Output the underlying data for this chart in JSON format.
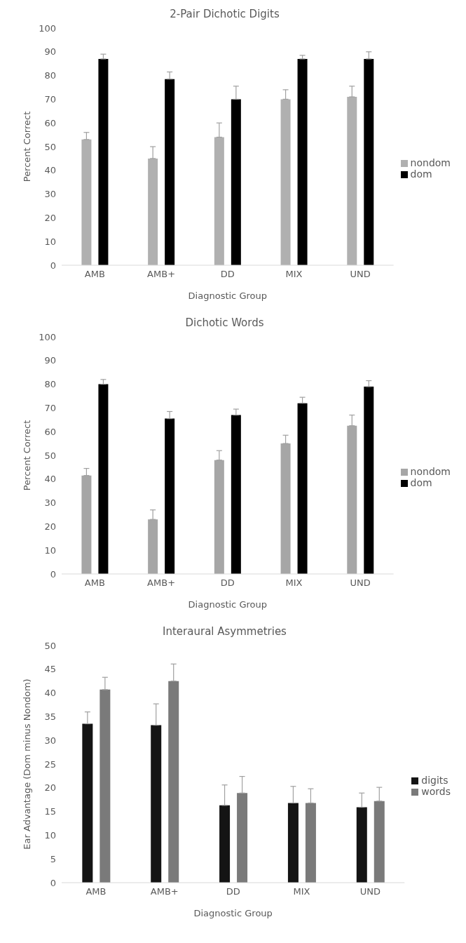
{
  "chart_data": [
    {
      "type": "bar",
      "title": "2-Pair Dichotic Digits",
      "xlabel": "Diagnostic Group",
      "ylabel": "Percent Correct",
      "categories": [
        "AMB",
        "AMB+",
        "DD",
        "MIX",
        "UND"
      ],
      "ylim": [
        0,
        100
      ],
      "yticks": [
        0,
        10,
        20,
        30,
        40,
        50,
        60,
        70,
        80,
        90,
        100
      ],
      "grid": false,
      "legend": "right",
      "series": [
        {
          "name": "nondom",
          "color": "#b0b0b0",
          "values": [
            53,
            45,
            54,
            70,
            71
          ],
          "errors": [
            [
              53,
              56
            ],
            [
              45,
              50
            ],
            [
              54,
              60
            ],
            [
              70,
              74
            ],
            [
              71,
              75.5
            ]
          ]
        },
        {
          "name": "dom",
          "color": "#000000",
          "values": [
            87,
            78.5,
            70,
            87,
            87
          ],
          "errors": [
            [
              87,
              89
            ],
            [
              78.5,
              81.5
            ],
            [
              70,
              75.5
            ],
            [
              87,
              88.5
            ],
            [
              87,
              90
            ]
          ]
        }
      ]
    },
    {
      "type": "bar",
      "title": "Dichotic Words",
      "xlabel": "Diagnostic Group",
      "ylabel": "Percent Correct",
      "categories": [
        "AMB",
        "AMB+",
        "DD",
        "MIX",
        "UND"
      ],
      "ylim": [
        0,
        100
      ],
      "yticks": [
        0,
        10,
        20,
        30,
        40,
        50,
        60,
        70,
        80,
        90,
        100
      ],
      "grid": false,
      "legend": "right",
      "series": [
        {
          "name": "nondom",
          "color": "#a6a6a6",
          "values": [
            41.5,
            23,
            48,
            55,
            62.5
          ],
          "errors": [
            [
              41.5,
              44.5
            ],
            [
              23,
              27
            ],
            [
              48,
              52
            ],
            [
              55,
              58.5
            ],
            [
              62.5,
              67
            ]
          ]
        },
        {
          "name": "dom",
          "color": "#000000",
          "values": [
            80,
            65.5,
            67,
            72,
            79
          ],
          "errors": [
            [
              80,
              82
            ],
            [
              65.5,
              68.5
            ],
            [
              67,
              69.5
            ],
            [
              72,
              74.5
            ],
            [
              79,
              81.5
            ]
          ]
        }
      ]
    },
    {
      "type": "bar",
      "title": "Interaural Asymmetries",
      "xlabel": "Diagnostic Group",
      "ylabel": "Ear Advantage (Dom minus Nondom)",
      "categories": [
        "AMB",
        "AMB+",
        "DD",
        "MIX",
        "UND"
      ],
      "ylim": [
        0,
        50
      ],
      "yticks": [
        0,
        5,
        10,
        15,
        20,
        25,
        30,
        35,
        40,
        45,
        50
      ],
      "grid": false,
      "legend": "right",
      "series": [
        {
          "name": "digits",
          "color": "#141414",
          "values": [
            33.5,
            33.2,
            16.3,
            16.8,
            15.9
          ],
          "errors": [
            [
              33.5,
              36
            ],
            [
              33.2,
              37.7
            ],
            [
              16.3,
              20.6
            ],
            [
              16.8,
              20.3
            ],
            [
              15.9,
              18.9
            ]
          ]
        },
        {
          "name": "words",
          "color": "#7a7a7a",
          "values": [
            40.7,
            42.5,
            18.9,
            16.8,
            17.2
          ],
          "errors": [
            [
              40.7,
              43.3
            ],
            [
              42.5,
              46.1
            ],
            [
              18.9,
              22.4
            ],
            [
              16.8,
              19.8
            ],
            [
              17.2,
              20.1
            ]
          ]
        }
      ]
    }
  ]
}
